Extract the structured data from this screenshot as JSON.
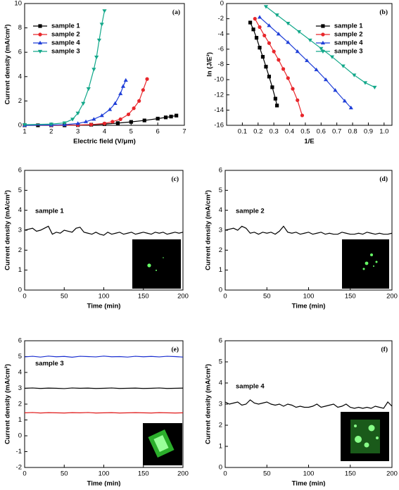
{
  "chart_data": [
    {
      "type": "line",
      "title": "(a)",
      "xlabel": "Electric field (V/μm)",
      "ylabel": "Current density  (mA/cm²)",
      "xlim": [
        1,
        7
      ],
      "ylim": [
        0,
        10
      ],
      "xticks": [
        1,
        2,
        3,
        4,
        5,
        6,
        7
      ],
      "yticks": [
        0,
        2,
        4,
        6,
        8,
        10
      ],
      "legend": "upper left",
      "series": [
        {
          "name": "sample 1",
          "color": "#000000",
          "marker": "square",
          "x": [
            1,
            1.5,
            2,
            2.5,
            3,
            3.5,
            4,
            4.5,
            5,
            5.5,
            6,
            6.3,
            6.5,
            6.7
          ],
          "values": [
            0,
            0,
            0,
            0,
            0.02,
            0.05,
            0.1,
            0.18,
            0.28,
            0.4,
            0.55,
            0.65,
            0.72,
            0.8
          ]
        },
        {
          "name": "sample 2",
          "color": "#e8262b",
          "marker": "circle",
          "x": [
            1,
            2,
            3,
            3.5,
            4,
            4.3,
            4.6,
            4.9,
            5.1,
            5.3,
            5.45,
            5.6
          ],
          "values": [
            0,
            0,
            0.02,
            0.06,
            0.15,
            0.3,
            0.5,
            0.9,
            1.4,
            2.0,
            2.9,
            3.8
          ]
        },
        {
          "name": "sample 4",
          "color": "#1f3fd8",
          "marker": "triangle",
          "x": [
            1,
            2,
            2.5,
            3,
            3.3,
            3.6,
            3.9,
            4.2,
            4.4,
            4.6,
            4.7,
            4.8
          ],
          "values": [
            0,
            0.02,
            0.05,
            0.15,
            0.3,
            0.5,
            0.8,
            1.3,
            1.8,
            2.6,
            3.2,
            3.7
          ]
        },
        {
          "name": "sample 3",
          "color": "#13a88a",
          "marker": "triangle-down",
          "x": [
            1,
            2,
            2.5,
            2.8,
            3,
            3.2,
            3.4,
            3.6,
            3.7,
            3.8,
            3.9,
            4
          ],
          "values": [
            0.05,
            0.1,
            0.2,
            0.5,
            1.0,
            1.8,
            3.0,
            4.6,
            5.6,
            7.0,
            8.3,
            9.4
          ]
        }
      ]
    },
    {
      "type": "line",
      "title": "(b)",
      "xlabel": "1/E",
      "ylabel": "ln  (J/E²)",
      "xlim": [
        0,
        1.05
      ],
      "ylim": [
        -16,
        0
      ],
      "xticks": [
        0.1,
        0.2,
        0.3,
        0.4,
        0.5,
        0.6,
        0.7,
        0.8,
        0.9,
        {
          "value": 1,
          "label": "1.0"
        }
      ],
      "yticks": [
        0,
        -2,
        -4,
        -6,
        -8,
        -10,
        -12,
        -14,
        -16
      ],
      "legend": "upper right",
      "series": [
        {
          "name": "sample 1",
          "color": "#000000",
          "marker": "square",
          "x": [
            0.15,
            0.17,
            0.19,
            0.21,
            0.23,
            0.25,
            0.27,
            0.29,
            0.31,
            0.32
          ],
          "values": [
            -2.5,
            -3.4,
            -4.5,
            -5.8,
            -7.0,
            -8.3,
            -9.6,
            -11.0,
            -12.5,
            -13.4
          ]
        },
        {
          "name": "sample 2",
          "color": "#e8262b",
          "marker": "circle",
          "x": [
            0.18,
            0.21,
            0.24,
            0.27,
            0.3,
            0.33,
            0.36,
            0.39,
            0.42,
            0.45,
            0.48
          ],
          "values": [
            -2,
            -3.1,
            -4.2,
            -5.2,
            -6.3,
            -7.4,
            -8.6,
            -9.8,
            -11.2,
            -12.7,
            -14.7
          ]
        },
        {
          "name": "sample 4",
          "color": "#1f3fd8",
          "marker": "triangle",
          "x": [
            0.21,
            0.27,
            0.33,
            0.39,
            0.45,
            0.51,
            0.57,
            0.63,
            0.69,
            0.75,
            0.79
          ],
          "values": [
            -1.8,
            -2.9,
            -4.0,
            -5.1,
            -6.3,
            -7.5,
            -8.7,
            -10.0,
            -11.4,
            -12.8,
            -13.7
          ]
        },
        {
          "name": "sample 3",
          "color": "#13a88a",
          "marker": "triangle-down",
          "x": [
            0.25,
            0.32,
            0.39,
            0.46,
            0.53,
            0.6,
            0.67,
            0.74,
            0.81,
            0.88,
            0.94
          ],
          "values": [
            -0.4,
            -1.5,
            -2.6,
            -3.7,
            -4.8,
            -5.9,
            -7.0,
            -8.2,
            -9.4,
            -10.4,
            -11
          ]
        }
      ]
    },
    {
      "type": "line",
      "title": "(c)",
      "annotation": "sample 1",
      "xlabel": "Time (min)",
      "ylabel": "Current density  (mA/cm²)",
      "xlim": [
        0,
        200
      ],
      "ylim": [
        0,
        6
      ],
      "xticks": [
        0,
        50,
        100,
        150,
        200
      ],
      "yticks": [
        0,
        1,
        2,
        3,
        4,
        5,
        6
      ],
      "x": [
        0,
        5,
        10,
        15,
        20,
        25,
        30,
        35,
        40,
        45,
        50,
        55,
        60,
        65,
        70,
        75,
        80,
        85,
        90,
        95,
        100,
        105,
        110,
        115,
        120,
        125,
        130,
        135,
        140,
        145,
        150,
        155,
        160,
        165,
        170,
        175,
        180,
        185,
        190,
        195,
        200
      ],
      "series": [
        {
          "color": "#000000",
          "values": [
            3.0,
            3.05,
            3.1,
            2.95,
            3.0,
            3.1,
            3.2,
            2.8,
            2.9,
            2.85,
            3.0,
            2.95,
            2.9,
            3.1,
            3.15,
            2.9,
            2.85,
            2.8,
            2.9,
            2.8,
            2.75,
            2.9,
            2.8,
            2.85,
            2.9,
            2.8,
            2.85,
            2.9,
            2.8,
            2.85,
            2.9,
            2.85,
            2.8,
            2.9,
            2.85,
            2.9,
            2.8,
            2.85,
            2.9,
            2.85,
            2.9
          ]
        }
      ]
    },
    {
      "type": "line",
      "title": "(d)",
      "annotation": "sample 2",
      "xlabel": "Time (min)",
      "ylabel": "Current density  (mA/cm²)",
      "xlim": [
        0,
        200
      ],
      "ylim": [
        0,
        6
      ],
      "xticks": [
        0,
        50,
        100,
        150,
        200
      ],
      "yticks": [
        0,
        1,
        2,
        3,
        4,
        5,
        6
      ],
      "x": [
        0,
        5,
        10,
        15,
        20,
        25,
        30,
        35,
        40,
        45,
        50,
        55,
        60,
        65,
        70,
        75,
        80,
        85,
        90,
        95,
        100,
        105,
        110,
        115,
        120,
        125,
        130,
        135,
        140,
        145,
        150,
        155,
        160,
        165,
        170,
        175,
        180,
        185,
        190,
        195,
        200
      ],
      "series": [
        {
          "color": "#000000",
          "values": [
            3.0,
            3.05,
            3.1,
            3.0,
            3.2,
            3.1,
            2.85,
            2.9,
            2.8,
            2.9,
            2.85,
            2.9,
            2.8,
            2.95,
            3.2,
            2.9,
            2.85,
            2.9,
            2.8,
            2.85,
            2.9,
            2.8,
            2.85,
            2.9,
            2.8,
            2.85,
            2.8,
            2.8,
            2.9,
            2.85,
            2.8,
            2.8,
            2.85,
            2.8,
            2.9,
            2.85,
            2.8,
            2.85,
            2.8,
            2.8,
            2.85
          ]
        }
      ]
    },
    {
      "type": "line",
      "title": "(e)",
      "annotation": "sample 3",
      "xlabel": "Time (min)",
      "ylabel": "Current density  (mA/cm²)",
      "xlim": [
        0,
        200
      ],
      "ylim": [
        -2,
        6
      ],
      "xticks": [
        0,
        50,
        100,
        150,
        200
      ],
      "yticks": [
        -2,
        -1,
        0,
        1,
        2,
        3,
        4,
        5,
        6
      ],
      "x": [
        0,
        10,
        20,
        30,
        40,
        50,
        60,
        70,
        80,
        90,
        100,
        110,
        120,
        130,
        140,
        150,
        160,
        170,
        180,
        190,
        200
      ],
      "series": [
        {
          "color": "#1b2fd0",
          "values": [
            4.98,
            5.02,
            4.97,
            5.03,
            4.99,
            5.01,
            4.96,
            5.02,
            5.0,
            4.98,
            5.03,
            4.99,
            5.0,
            4.97,
            5.02,
            4.99,
            5.01,
            4.98,
            5.02,
            5.0,
            4.97
          ]
        },
        {
          "color": "#000000",
          "values": [
            3.0,
            3.02,
            2.99,
            3.01,
            3.0,
            2.98,
            3.02,
            3.0,
            3.01,
            2.99,
            3.0,
            3.02,
            2.99,
            3.0,
            3.01,
            2.99,
            3.0,
            3.02,
            2.99,
            3.0,
            3.01
          ]
        },
        {
          "color": "#e01818",
          "values": [
            1.45,
            1.47,
            1.44,
            1.46,
            1.45,
            1.44,
            1.46,
            1.45,
            1.47,
            1.44,
            1.45,
            1.46,
            1.44,
            1.45,
            1.46,
            1.45,
            1.44,
            1.46,
            1.45,
            1.44,
            1.45
          ]
        }
      ]
    },
    {
      "type": "line",
      "title": "(f)",
      "annotation": "sample 4",
      "xlabel": "Time (min)",
      "ylabel": "Current density  (mA/cm²)",
      "xlim": [
        0,
        200
      ],
      "ylim": [
        0,
        6
      ],
      "xticks": [
        0,
        50,
        100,
        150,
        200
      ],
      "yticks": [
        0,
        1,
        2,
        3,
        4,
        5,
        6
      ],
      "x": [
        0,
        5,
        10,
        15,
        20,
        25,
        30,
        35,
        40,
        45,
        50,
        55,
        60,
        65,
        70,
        75,
        80,
        85,
        90,
        95,
        100,
        105,
        110,
        115,
        120,
        125,
        130,
        135,
        140,
        145,
        150,
        155,
        160,
        165,
        170,
        175,
        180,
        185,
        190,
        195,
        200
      ],
      "series": [
        {
          "color": "#000000",
          "values": [
            3.1,
            3.0,
            3.05,
            3.1,
            2.95,
            3.0,
            3.2,
            3.05,
            3.0,
            3.05,
            3.1,
            3.0,
            2.95,
            3.0,
            2.9,
            3.0,
            2.95,
            2.85,
            2.9,
            2.85,
            2.85,
            2.9,
            3.0,
            2.85,
            2.9,
            2.95,
            3.0,
            2.85,
            2.9,
            3.0,
            2.85,
            2.8,
            2.85,
            2.8,
            2.85,
            2.8,
            2.9,
            2.85,
            2.8,
            3.1,
            2.9
          ]
        }
      ]
    }
  ]
}
